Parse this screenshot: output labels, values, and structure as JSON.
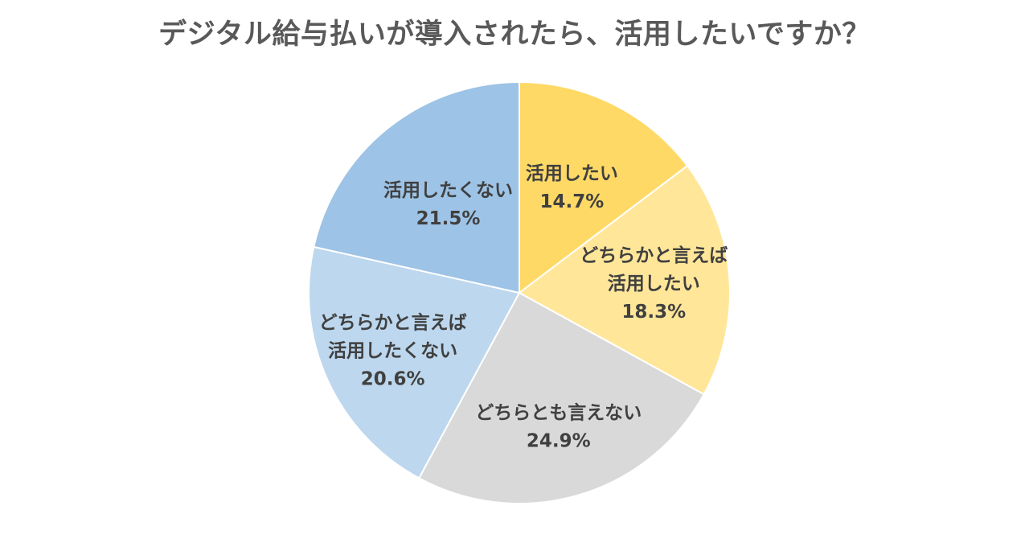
{
  "chart_data": {
    "type": "pie",
    "title": "デジタル給与払いが導入されたら、活用したいですか？",
    "slices": [
      {
        "label": [
          "活用したい"
        ],
        "value": 14.7,
        "value_label": "14.7%",
        "color": "#FFD966"
      },
      {
        "label": [
          "どちらかと言えば",
          "活用したい"
        ],
        "value": 18.3,
        "value_label": "18.3%",
        "color": "#FFE699"
      },
      {
        "label": [
          "どちらとも言えない"
        ],
        "value": 24.9,
        "value_label": "24.9%",
        "color": "#D9D9D9"
      },
      {
        "label": [
          "どちらかと言えば",
          "活用したくない"
        ],
        "value": 20.6,
        "value_label": "20.6%",
        "color": "#BDD7EE"
      },
      {
        "label": [
          "活用したくない"
        ],
        "value": 21.5,
        "value_label": "21.5%",
        "color": "#9DC3E6"
      }
    ],
    "start_angle": "12 o'clock",
    "direction": "clockwise",
    "legend": "none"
  }
}
